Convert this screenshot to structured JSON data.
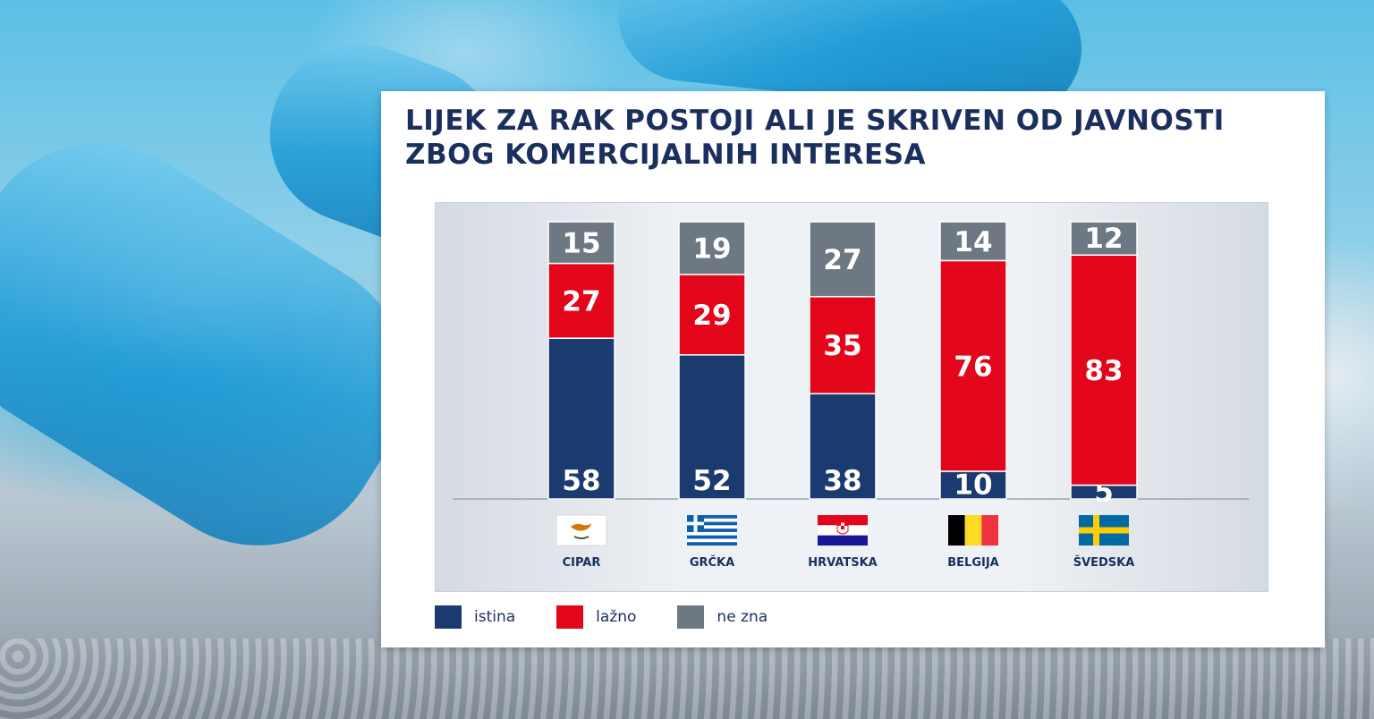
{
  "chart_data": {
    "type": "bar",
    "stacked": true,
    "title": "LIJEK ZA RAK POSTOJI ALI JE SKRIVEN OD JAVNOSTI ZBOG KOMERCIJALNIH INTERESA",
    "categories": [
      "CIPAR",
      "GRČKA",
      "HRVATSKA",
      "BELGIJA",
      "ŠVEDSKA"
    ],
    "flags": [
      "cyprus-flag",
      "greece-flag",
      "croatia-flag",
      "belgium-flag",
      "sweden-flag"
    ],
    "series": [
      {
        "name": "istina",
        "color": "#1b3a6f",
        "values": [
          58,
          52,
          38,
          10,
          5
        ]
      },
      {
        "name": "lažno",
        "color": "#e3061b",
        "values": [
          27,
          29,
          35,
          76,
          83
        ]
      },
      {
        "name": "ne zna",
        "color": "#6d7883",
        "values": [
          15,
          19,
          27,
          14,
          12
        ]
      }
    ],
    "ylim": [
      0,
      100
    ],
    "grid": false,
    "legend_position": "bottom-left"
  }
}
